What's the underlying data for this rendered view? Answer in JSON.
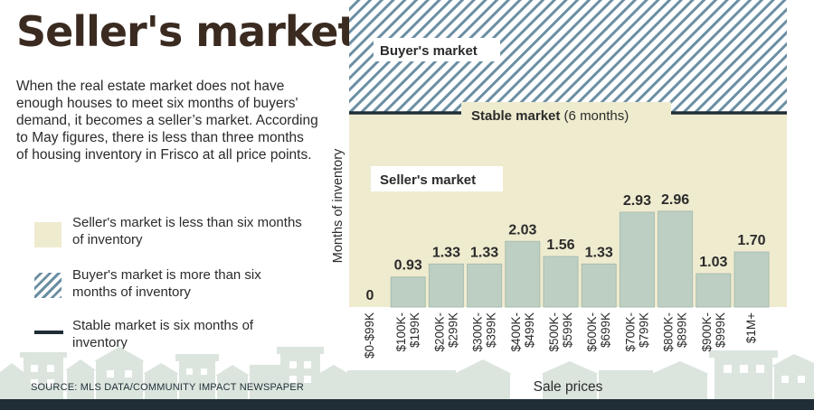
{
  "title": "Seller's market",
  "intro": "When the real estate market does not have enough houses to meet six months of buyers' demand, it becomes a seller’s market. According to May figures, there is less than three months of housing inventory in Frisco at all price points.",
  "legend": [
    {
      "text": "Seller's market is less than six months of inventory",
      "swatch": "seller"
    },
    {
      "text": "Buyer's market is more than six months of inventory",
      "swatch": "buyer"
    },
    {
      "text": "Stable market is six months of inventory",
      "swatch": "stable"
    }
  ],
  "source": "SOURCE: MLS DATA/COMMUNITY IMPACT NEWSPAPER",
  "colors": {
    "seller_fill": "#efebcf",
    "bar": "#bccfc2",
    "bar_stroke": "#a9bdb0",
    "hatch": "#6b8fa3",
    "stable_line": "#1f2d36",
    "house": "#dbe5de",
    "footer": "#1f2d36"
  },
  "chart_data": {
    "type": "bar",
    "categories": [
      "$0-$99K",
      "$100K-$199K",
      "$200K-$299K",
      "$300K-$399K",
      "$400K-$499K",
      "$500K-$599K",
      "$600K-$699K",
      "$700K-$799K",
      "$800K-$899K",
      "$900K-$999K",
      "$1M+"
    ],
    "category_lines": [
      [
        "$0-$99K"
      ],
      [
        "$100K-",
        "$199K"
      ],
      [
        "$200K-",
        "$299K"
      ],
      [
        "$300K-",
        "$399K"
      ],
      [
        "$400K-",
        "$499K"
      ],
      [
        "$500K-",
        "$599K"
      ],
      [
        "$600K-",
        "$699K"
      ],
      [
        "$700K-",
        "$799K"
      ],
      [
        "$800K-",
        "$899K"
      ],
      [
        "$900K-",
        "$999K"
      ],
      [
        "$1M+"
      ]
    ],
    "values": [
      0,
      0.93,
      1.33,
      1.33,
      2.03,
      1.56,
      1.33,
      2.93,
      2.96,
      1.03,
      1.7
    ],
    "value_labels": [
      "0",
      "0.93",
      "1.33",
      "1.33",
      "2.03",
      "1.56",
      "1.33",
      "2.93",
      "2.96",
      "1.03",
      "1.70"
    ],
    "xlabel": "Sale prices",
    "ylabel": "Months of inventory",
    "stable_value": 6,
    "regions": {
      "buyer": "Buyer's market",
      "stable": "Stable market",
      "stable_suffix": " (6 months)",
      "seller": "Seller's market"
    },
    "grid": false,
    "legend": "left"
  }
}
